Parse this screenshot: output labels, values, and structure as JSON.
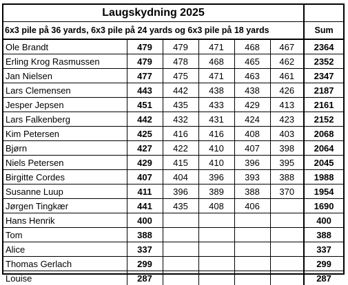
{
  "title": "Laugskydning 2025",
  "subtitle": "6x3 pile på 36 yards, 6x3 pile på 24 yards og 6x3 pile på 18 yards",
  "sum_header": "Sum",
  "rows": [
    {
      "name": "Ole Brandt",
      "s1": "479",
      "s2": "479",
      "s3": "471",
      "s4": "468",
      "s5": "467",
      "sum": "2364"
    },
    {
      "name": "Erling Krog Rasmussen",
      "s1": "479",
      "s2": "478",
      "s3": "468",
      "s4": "465",
      "s5": "462",
      "sum": "2352"
    },
    {
      "name": "Jan Nielsen",
      "s1": "477",
      "s2": "475",
      "s3": "471",
      "s4": "463",
      "s5": "461",
      "sum": "2347"
    },
    {
      "name": "Lars Clemensen",
      "s1": "443",
      "s2": "442",
      "s3": "438",
      "s4": "438",
      "s5": "426",
      "sum": "2187"
    },
    {
      "name": "Jesper Jepsen",
      "s1": "451",
      "s2": "435",
      "s3": "433",
      "s4": "429",
      "s5": "413",
      "sum": "2161"
    },
    {
      "name": "Lars Falkenberg",
      "s1": "442",
      "s2": "432",
      "s3": "431",
      "s4": "424",
      "s5": "423",
      "sum": "2152"
    },
    {
      "name": "Kim Petersen",
      "s1": "425",
      "s2": "416",
      "s3": "416",
      "s4": "408",
      "s5": "403",
      "sum": "2068"
    },
    {
      "name": "Bjørn",
      "s1": "427",
      "s2": "422",
      "s3": "410",
      "s4": "407",
      "s5": "398",
      "sum": "2064"
    },
    {
      "name": "Niels Petersen",
      "s1": "429",
      "s2": "415",
      "s3": "410",
      "s4": "396",
      "s5": "395",
      "sum": "2045"
    },
    {
      "name": "Birgitte Cordes",
      "s1": "407",
      "s2": "404",
      "s3": "396",
      "s4": "393",
      "s5": "388",
      "sum": "1988"
    },
    {
      "name": "Susanne Luup",
      "s1": "411",
      "s2": "396",
      "s3": "389",
      "s4": "388",
      "s5": "370",
      "sum": "1954"
    },
    {
      "name": "Jørgen Tingkær",
      "s1": "441",
      "s2": "435",
      "s3": "408",
      "s4": "406",
      "s5": "",
      "sum": "1690"
    },
    {
      "name": "Hans Henrik",
      "s1": "400",
      "s2": "",
      "s3": "",
      "s4": "",
      "s5": "",
      "sum": "400"
    },
    {
      "name": "Tom",
      "s1": "388",
      "s2": "",
      "s3": "",
      "s4": "",
      "s5": "",
      "sum": "388"
    },
    {
      "name": "Alice",
      "s1": "337",
      "s2": "",
      "s3": "",
      "s4": "",
      "s5": "",
      "sum": "337"
    },
    {
      "name": "Thomas Gerlach",
      "s1": "299",
      "s2": "",
      "s3": "",
      "s4": "",
      "s5": "",
      "sum": "299"
    },
    {
      "name": "Louise",
      "s1": "287",
      "s2": "",
      "s3": "",
      "s4": "",
      "s5": "",
      "sum": "287"
    }
  ]
}
